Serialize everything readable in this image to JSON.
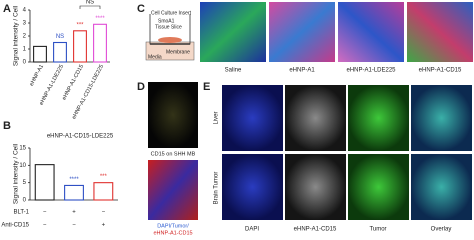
{
  "panel_labels": [
    "A",
    "B",
    "C",
    "D",
    "E"
  ],
  "chart_data": [
    {
      "type": "bar",
      "ylabel": "Signal intensity / Cell",
      "categories": [
        "eHNP-A1",
        "eHNP-A1-LDE225",
        "eHNP-A1-CD15",
        "eHNP-A1-CD15-LDE225"
      ],
      "values": [
        1.2,
        1.5,
        2.4,
        2.9
      ],
      "colors": [
        "#222222",
        "#2d4fc4",
        "#e0312f",
        "#e04bd6"
      ],
      "annotations": [
        null,
        "NS",
        "***",
        "****"
      ],
      "bracket": "NS",
      "ylim": [
        0,
        4
      ],
      "yticks": [
        0,
        1,
        2,
        3,
        4
      ]
    },
    {
      "type": "bar",
      "title": "eHNP-A1-CD15-LDE225",
      "ylabel": "Signal intensity / Cell",
      "values": [
        10.2,
        4.2,
        5.0
      ],
      "colors": [
        "#222222",
        "#2d4fc4",
        "#e0312f"
      ],
      "annotations": [
        null,
        "****",
        "***"
      ],
      "conditions": [
        {
          "name": "BLT-1",
          "values": [
            "−",
            "+",
            "−"
          ]
        },
        {
          "name": "Anti-CD15",
          "values": [
            "−",
            "−",
            "+"
          ]
        }
      ],
      "ylim": [
        0,
        15
      ],
      "yticks": [
        0,
        5,
        10,
        15
      ]
    }
  ],
  "schematic": {
    "labels": [
      "Cell Culture Insert",
      "SmoA1",
      "Tissue Slice",
      "Membrane",
      "Media"
    ]
  },
  "panel_c_images": [
    "Saline",
    "eHNP-A1",
    "eHNP-A1-LDE225",
    "eHNP-A1-CD15"
  ],
  "panel_d": {
    "caption": "CD15 on SHH MB",
    "legend": [
      "DAPI/Tumor/",
      "eHNP-A1-CD15"
    ]
  },
  "panel_e": {
    "rows": [
      "Liver",
      "Brain Tumor"
    ],
    "columns": [
      "DAPI",
      "eHNP-A1-CD15",
      "Tumor",
      "Overlay"
    ]
  }
}
